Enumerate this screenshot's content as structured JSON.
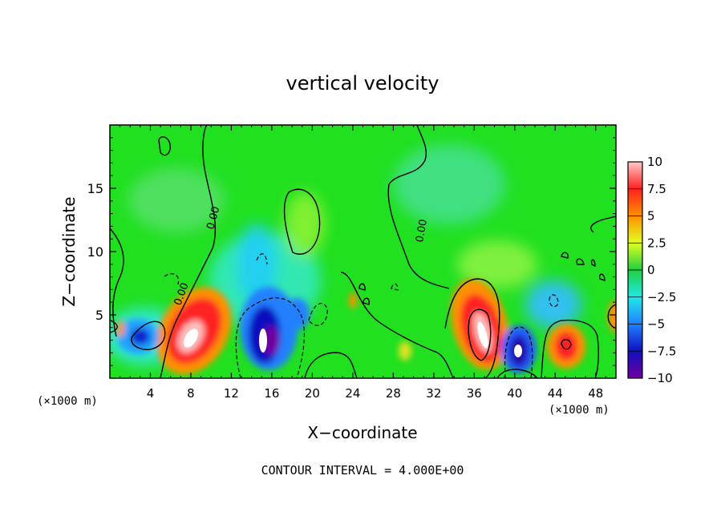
{
  "chart_data": {
    "type": "heatmap",
    "title": "vertical velocity",
    "xlabel": "X−coordinate",
    "ylabel": "Z−coordinate",
    "x_unit_left": "(×1000 m)",
    "x_unit_right": "(×1000 m)",
    "footer": "CONTOUR INTERVAL = 4.000E+00",
    "xlim": [
      0,
      50
    ],
    "ylim": [
      0,
      20
    ],
    "x_ticks": [
      4,
      8,
      12,
      16,
      20,
      24,
      28,
      32,
      36,
      40,
      44,
      48
    ],
    "y_ticks": [
      5,
      10,
      15
    ],
    "colorbar": {
      "range": [
        -10,
        10
      ],
      "ticks": [
        10,
        7.5,
        5,
        2.5,
        0,
        -2.5,
        -5,
        -7.5,
        -10
      ],
      "tick_labels": [
        "10",
        "7.5",
        "5",
        "2.5",
        "0",
        "−2.5",
        "−5",
        "−7.5",
        "−10"
      ],
      "colors": [
        "#ffc8c8",
        "#ff2020",
        "#ff9000",
        "#e0ff20",
        "#20d040",
        "#20e8e8",
        "#2080ff",
        "#1010c0",
        "#7000a0"
      ]
    },
    "contour_labels": [
      "0.00",
      "0.00",
      "0.00"
    ],
    "features": [
      {
        "kind": "updraft",
        "x": 8.5,
        "z": 3.5,
        "peak": 12
      },
      {
        "kind": "downdraft",
        "x": 3,
        "z": 3.3,
        "peak": -5
      },
      {
        "kind": "downdraft",
        "x": 15,
        "z": 3.5,
        "peak": -12
      },
      {
        "kind": "downdraft",
        "x": 17,
        "z": 5,
        "peak": -5
      },
      {
        "kind": "updraft",
        "x": 36.5,
        "z": 4,
        "peak": 12
      },
      {
        "kind": "downdraft",
        "x": 40.3,
        "z": 2.3,
        "peak": -12
      },
      {
        "kind": "updraft",
        "x": 45,
        "z": 2.6,
        "peak": 7.5
      },
      {
        "kind": "updraft",
        "x": 18.5,
        "z": 12.5,
        "peak": 2
      },
      {
        "kind": "downdraft",
        "x": 12.5,
        "z": 11.5,
        "peak": -2.5
      }
    ]
  }
}
